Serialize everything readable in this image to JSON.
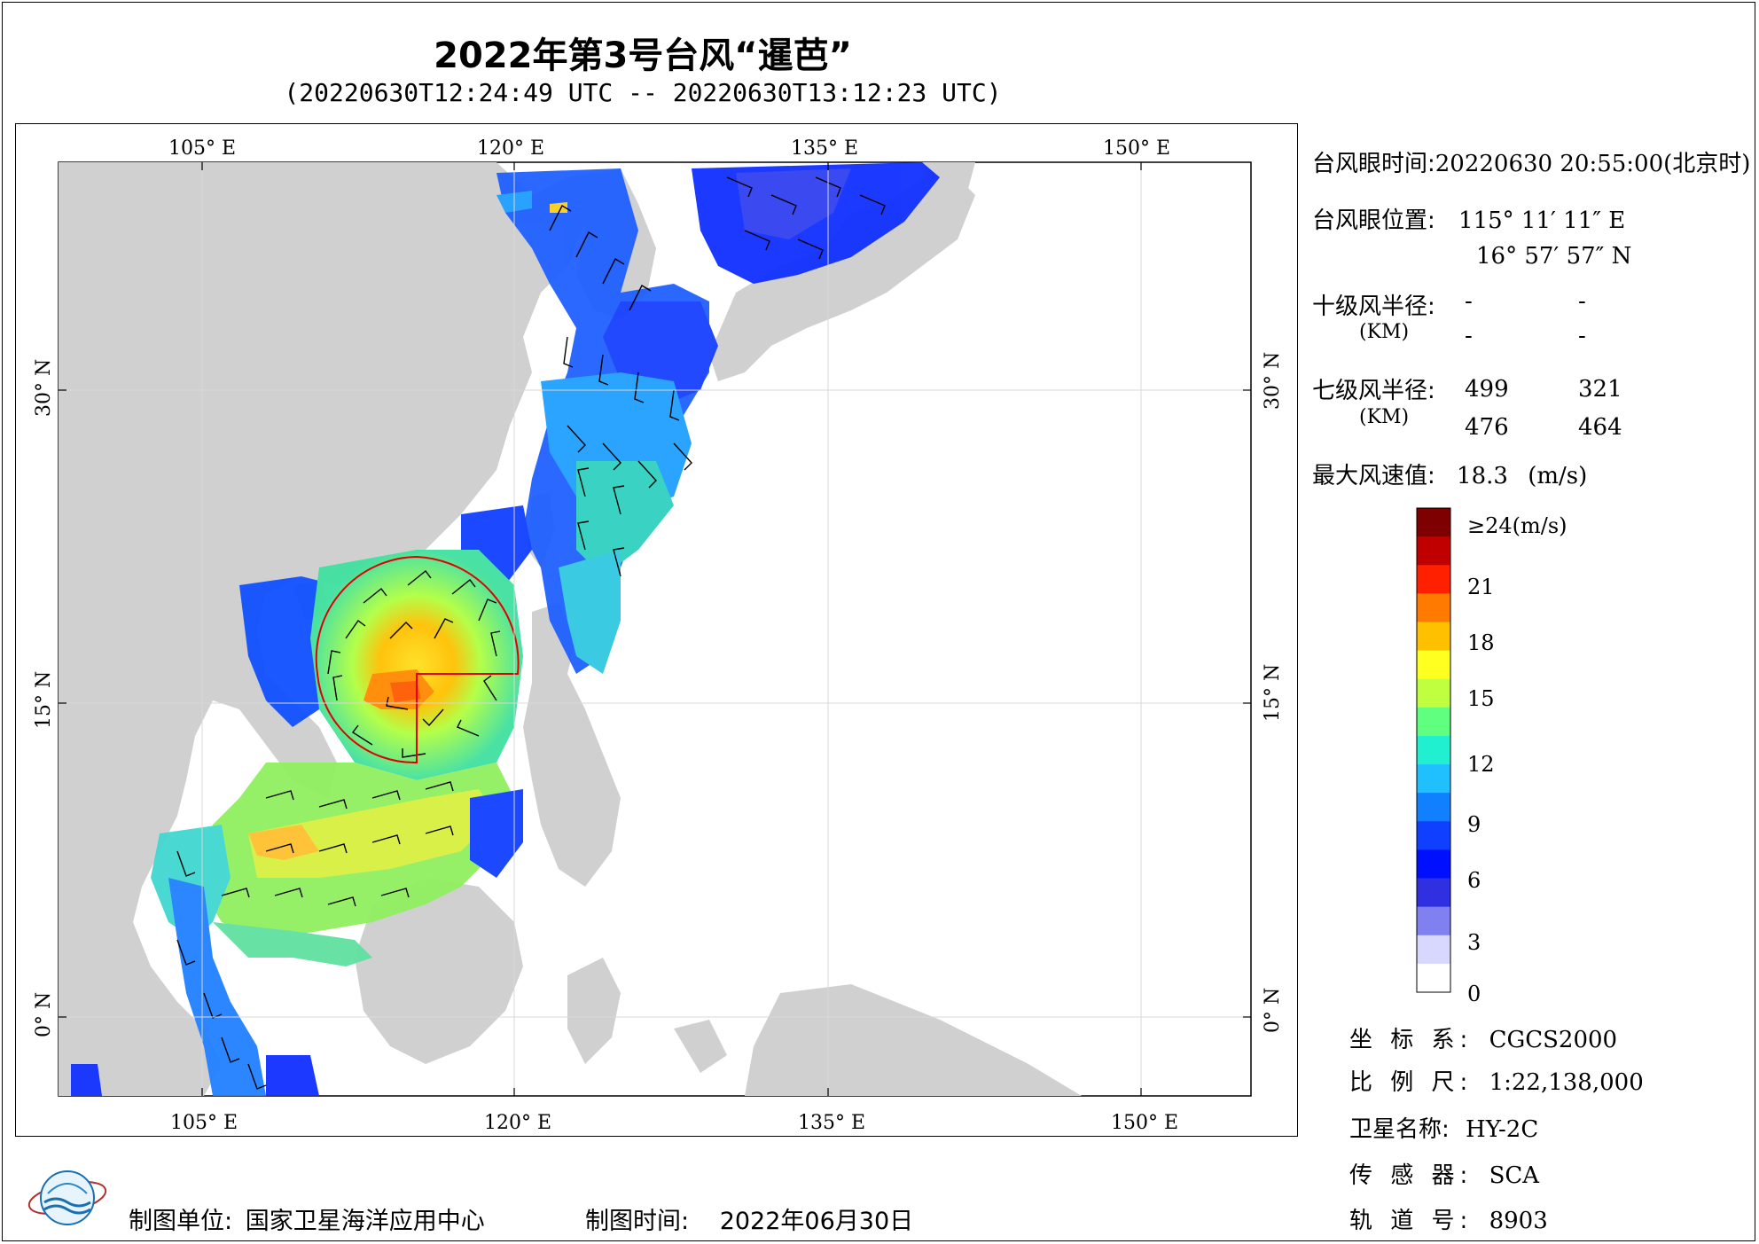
{
  "title": "2022年第3号台风“暹芭”",
  "subtitle": "(20220630T12:24:49 UTC -- 20220630T13:12:23 UTC)",
  "axes": {
    "top_lon": [
      "105° E",
      "120° E",
      "135° E",
      "150° E"
    ],
    "bottom_lon": [
      "105° E",
      "120° E",
      "135° E",
      "150° E"
    ],
    "left_lat": [
      "30° N",
      "15° N",
      "0° N"
    ],
    "right_lat": [
      "30° N",
      "15° N",
      "0° N"
    ]
  },
  "info": {
    "eye_time_label": "台风眼时间:",
    "eye_time_value": "20220630 20:55:00(北京时)",
    "eye_pos_label": "台风眼位置:",
    "eye_lon": "115° 11′ 11″ E",
    "eye_lat": "16° 57′ 57″ N",
    "r10_label": "十级风半径:",
    "r10_unit": "(KM)",
    "r10_values": [
      "-",
      "-",
      "-",
      "-"
    ],
    "r7_label": "七级风半径:",
    "r7_unit": "(KM)",
    "r7_values": [
      "499",
      "321",
      "476",
      "464"
    ],
    "maxwind_label": "最大风速值:",
    "maxwind_value": "18.3",
    "maxwind_unit": "(m/s)"
  },
  "colorbar": {
    "ticks": [
      "≥24(m/s)",
      "21",
      "18",
      "15",
      "12",
      "9",
      "6",
      "3",
      "0"
    ],
    "colors": [
      "#7f0000",
      "#c00000",
      "#ff2000",
      "#ff7a00",
      "#ffc000",
      "#ffff20",
      "#c0ff40",
      "#60ff80",
      "#20f0d0",
      "#20c0ff",
      "#1080ff",
      "#1040ff",
      "#0010ff",
      "#3030e0",
      "#8080f0",
      "#d8d8ff",
      "#ffffff"
    ]
  },
  "meta": {
    "crs_label": "坐 标 系:",
    "crs_value": "CGCS2000",
    "scale_label": "比 例 尺:",
    "scale_value": "1:22,138,000",
    "sat_label": "卫星名称:",
    "sat_value": "HY-2C",
    "sensor_label": "传 感 器:",
    "sensor_value": "SCA",
    "orbit_label": "轨 道 号:",
    "orbit_value": "8903"
  },
  "footer": {
    "org_label": "制图单位:",
    "org_value": "国家卫星海洋应用中心",
    "date_label": "制图时间:",
    "date_value": "2022年06月30日"
  }
}
